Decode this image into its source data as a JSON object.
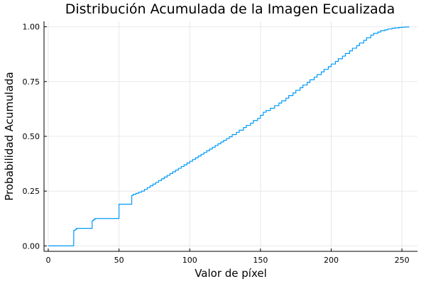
{
  "chart_data": {
    "type": "line",
    "title": "Distribución Acumulada de la Imagen Ecualizada",
    "xlabel": "Valor de píxel",
    "ylabel": "Probabilidad Acumulada",
    "xlim": [
      -3,
      261
    ],
    "ylim": [
      -0.025,
      1.025
    ],
    "xticks": [
      0,
      50,
      100,
      150,
      200,
      250
    ],
    "xtick_labels": [
      "0",
      "50",
      "100",
      "150",
      "200",
      "250"
    ],
    "yticks": [
      0,
      0.25,
      0.5,
      0.75,
      1.0
    ],
    "ytick_labels": [
      "0.00",
      "0.25",
      "0.50",
      "0.75",
      "1.00"
    ],
    "grid": true,
    "legend": "none",
    "line_color": "#009AFA",
    "series": [
      {
        "x": [
          0,
          17,
          18,
          19,
          20,
          22,
          23,
          30,
          31,
          32,
          33,
          49,
          50,
          58,
          59,
          60,
          62,
          64,
          66,
          68,
          70,
          72,
          74,
          76,
          78,
          80,
          82,
          84,
          86,
          88,
          90,
          92,
          94,
          96,
          98,
          100,
          102,
          104,
          106,
          108,
          110,
          112,
          114,
          116,
          118,
          120,
          122,
          124,
          126,
          128,
          130,
          133,
          135,
          138,
          140,
          143,
          145,
          148,
          150,
          152,
          154,
          157,
          160,
          163,
          165,
          168,
          170,
          173,
          175,
          178,
          180,
          183,
          185,
          188,
          190,
          193,
          195,
          198,
          200,
          203,
          205,
          208,
          210,
          213,
          215,
          218,
          220,
          223,
          225,
          228,
          230,
          233,
          235,
          238,
          240,
          243,
          245,
          248,
          250,
          252,
          255
        ],
        "y": [
          0.0,
          0.0,
          0.07,
          0.075,
          0.08,
          0.08,
          0.08,
          0.08,
          0.115,
          0.12,
          0.125,
          0.125,
          0.19,
          0.19,
          0.23,
          0.235,
          0.24,
          0.245,
          0.25,
          0.258,
          0.266,
          0.274,
          0.282,
          0.29,
          0.298,
          0.306,
          0.314,
          0.322,
          0.33,
          0.338,
          0.346,
          0.354,
          0.362,
          0.37,
          0.378,
          0.386,
          0.394,
          0.402,
          0.41,
          0.418,
          0.426,
          0.434,
          0.442,
          0.45,
          0.458,
          0.466,
          0.474,
          0.482,
          0.49,
          0.498,
          0.508,
          0.518,
          0.528,
          0.54,
          0.55,
          0.56,
          0.572,
          0.582,
          0.596,
          0.61,
          0.618,
          0.628,
          0.64,
          0.652,
          0.662,
          0.674,
          0.686,
          0.698,
          0.71,
          0.722,
          0.734,
          0.746,
          0.758,
          0.77,
          0.782,
          0.794,
          0.806,
          0.818,
          0.83,
          0.842,
          0.854,
          0.866,
          0.878,
          0.89,
          0.902,
          0.914,
          0.926,
          0.938,
          0.95,
          0.962,
          0.97,
          0.976,
          0.982,
          0.986,
          0.99,
          0.993,
          0.995,
          0.997,
          0.998,
          0.999,
          1.0
        ]
      }
    ]
  }
}
